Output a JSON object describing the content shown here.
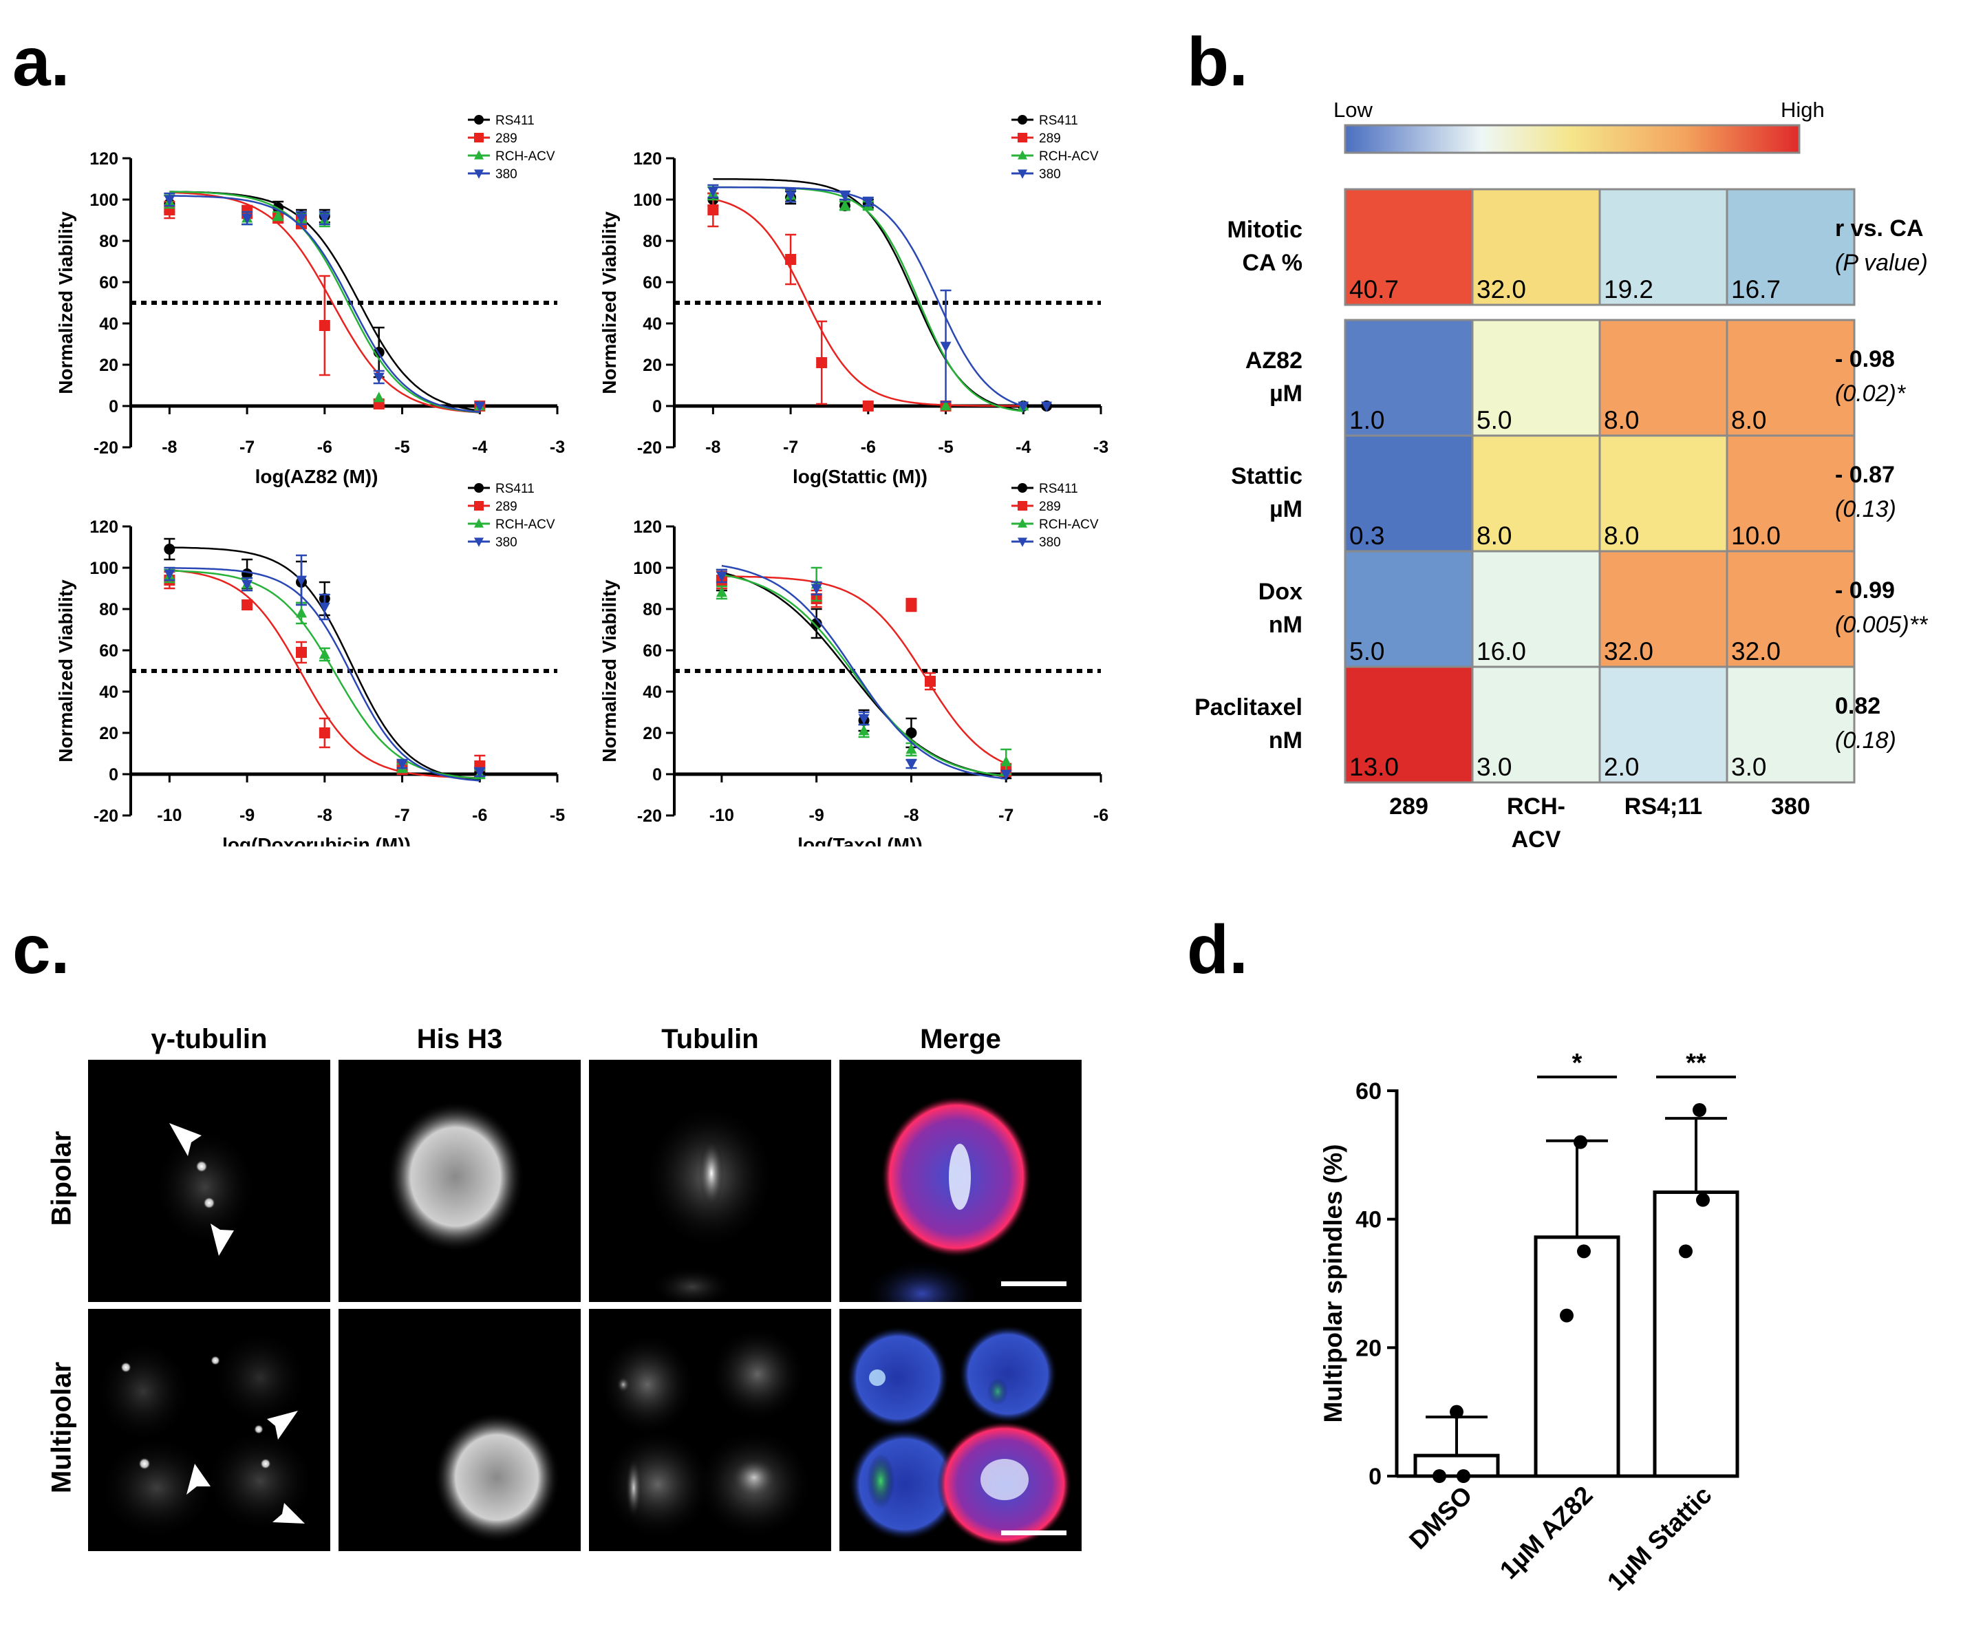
{
  "panel_labels": {
    "a": "a.",
    "b": "b.",
    "c": "c.",
    "d": "d."
  },
  "colors": {
    "RS411": "#000000",
    "289": "#e8231f",
    "RCH-ACV": "#27b33a",
    "380": "#2a48b5"
  },
  "chart_data": [
    {
      "type": "line",
      "panel": "a",
      "xlabel": "log(AZ82 (M))",
      "ylabel": "Normalized Viability",
      "xlim": [
        -8.5,
        -3
      ],
      "ylim": [
        -20,
        120
      ],
      "xticks": [
        -8,
        -7,
        -6,
        -5,
        -4,
        -3
      ],
      "yticks": [
        -20,
        0,
        20,
        40,
        60,
        80,
        100,
        120
      ],
      "threshold": 50,
      "series": [
        {
          "name": "RS411",
          "color": "#000000",
          "x": [
            -8,
            -6.6,
            -6.3,
            -6,
            -5.3,
            -4
          ],
          "y": [
            98,
            96,
            92,
            92,
            26,
            0
          ],
          "err": [
            4,
            3,
            3,
            3,
            12,
            1
          ],
          "ic50": -5.55,
          "hill": 1.15,
          "top": 104,
          "bottom": -4
        },
        {
          "name": "289",
          "color": "#e8231f",
          "x": [
            -8,
            -7,
            -6.6,
            -6.3,
            -6,
            -5.3,
            -4
          ],
          "y": [
            95,
            94,
            91,
            89,
            39,
            1,
            0
          ],
          "err": [
            4,
            3,
            2,
            3,
            24,
            1,
            1
          ],
          "ic50": -5.9,
          "hill": 1.1,
          "top": 104,
          "bottom": -4
        },
        {
          "name": "RCH-ACV",
          "color": "#27b33a",
          "x": [
            -8,
            -7,
            -6.6,
            -6.3,
            -6,
            -5.3,
            -4
          ],
          "y": [
            99,
            91,
            92,
            91,
            90,
            4,
            0
          ],
          "err": [
            3,
            3,
            2,
            2,
            3,
            1,
            1
          ],
          "ic50": -5.7,
          "hill": 1.2,
          "top": 104,
          "bottom": -4
        },
        {
          "name": "380",
          "color": "#2a48b5",
          "x": [
            -8,
            -7,
            -6.3,
            -6,
            -5.3,
            -4
          ],
          "y": [
            100,
            91,
            91,
            91,
            14,
            0
          ],
          "err": [
            3,
            3,
            3,
            3,
            3,
            1
          ],
          "ic50": -5.65,
          "hill": 1.2,
          "top": 102,
          "bottom": -4
        }
      ]
    },
    {
      "type": "line",
      "panel": "a",
      "xlabel": "log(Stattic (M))",
      "ylabel": "Normalized Viability",
      "xlim": [
        -8.5,
        -3
      ],
      "ylim": [
        -20,
        120
      ],
      "xticks": [
        -8,
        -7,
        -6,
        -5,
        -4,
        -3
      ],
      "yticks": [
        -20,
        0,
        20,
        40,
        60,
        80,
        100,
        120
      ],
      "threshold": 50,
      "series": [
        {
          "name": "RS411",
          "color": "#000000",
          "x": [
            -8,
            -7,
            -6.3,
            -6,
            -5,
            -4,
            -3.7
          ],
          "y": [
            100,
            101,
            97,
            98,
            0,
            0,
            0
          ],
          "err": [
            3,
            3,
            2,
            2,
            1,
            1,
            1
          ],
          "ic50": -5.4,
          "hill": 1.3,
          "top": 110,
          "bottom": -4
        },
        {
          "name": "289",
          "color": "#e8231f",
          "x": [
            -8,
            -7,
            -6.6,
            -6,
            -5
          ],
          "y": [
            95,
            71,
            21,
            0,
            0
          ],
          "err": [
            8,
            12,
            20,
            1,
            1
          ],
          "ic50": -6.8,
          "hill": 1.3,
          "top": 103,
          "bottom": 0
        },
        {
          "name": "RCH-ACV",
          "color": "#27b33a",
          "x": [
            -8,
            -7,
            -6.3,
            -6,
            -5,
            -4
          ],
          "y": [
            103,
            102,
            97,
            97,
            0,
            0
          ],
          "err": [
            3,
            3,
            2,
            2,
            1,
            1
          ],
          "ic50": -5.35,
          "hill": 1.4,
          "top": 106,
          "bottom": -4
        },
        {
          "name": "380",
          "color": "#2a48b5",
          "x": [
            -8,
            -7,
            -6.3,
            -6,
            -5,
            -4,
            -3.7
          ],
          "y": [
            104,
            102,
            102,
            99,
            29,
            0,
            0
          ],
          "err": [
            3,
            3,
            2,
            2,
            27,
            1,
            1
          ],
          "ic50": -5.1,
          "hill": 1.3,
          "top": 106,
          "bottom": -4
        }
      ]
    },
    {
      "type": "line",
      "panel": "a",
      "xlabel": "log(Doxorubicin (M))",
      "ylabel": "Normalized Viability",
      "xlim": [
        -10.5,
        -5
      ],
      "ylim": [
        -20,
        120
      ],
      "xticks": [
        -10,
        -9,
        -8,
        -7,
        -6,
        -5
      ],
      "yticks": [
        -20,
        0,
        20,
        40,
        60,
        80,
        100,
        120
      ],
      "threshold": 50,
      "series": [
        {
          "name": "RS411",
          "color": "#000000",
          "x": [
            -10,
            -9,
            -8.3,
            -8,
            -7,
            -6
          ],
          "y": [
            109,
            97,
            93,
            85,
            4,
            1
          ],
          "err": [
            5,
            7,
            10,
            8,
            2,
            2
          ],
          "ic50": -7.65,
          "hill": 1.2,
          "top": 110,
          "bottom": -4
        },
        {
          "name": "289",
          "color": "#e8231f",
          "x": [
            -10,
            -9,
            -8.3,
            -8,
            -7,
            -6
          ],
          "y": [
            94,
            82,
            59,
            20,
            3,
            4
          ],
          "err": [
            4,
            2,
            5,
            7,
            3,
            5
          ],
          "ic50": -8.3,
          "hill": 1.15,
          "top": 100,
          "bottom": -2
        },
        {
          "name": "RCH-ACV",
          "color": "#27b33a",
          "x": [
            -10,
            -9,
            -8.3,
            -8,
            -7,
            -6
          ],
          "y": [
            96,
            92,
            78,
            58,
            3,
            0
          ],
          "err": [
            3,
            3,
            5,
            3,
            2,
            2
          ],
          "ic50": -7.85,
          "hill": 1.1,
          "top": 99,
          "bottom": -3
        },
        {
          "name": "380",
          "color": "#2a48b5",
          "x": [
            -10,
            -9,
            -8.3,
            -8,
            -7,
            -6
          ],
          "y": [
            97,
            92,
            94,
            81,
            5,
            1
          ],
          "err": [
            3,
            3,
            12,
            6,
            2,
            2
          ],
          "ic50": -7.65,
          "hill": 1.25,
          "top": 100,
          "bottom": -4
        }
      ]
    },
    {
      "type": "line",
      "panel": "a",
      "xlabel": "log(Taxol (M))",
      "ylabel": "Normalized Viability",
      "xlim": [
        -10.5,
        -6
      ],
      "ylim": [
        -20,
        120
      ],
      "xticks": [
        -10,
        -9,
        -8,
        -7,
        -6
      ],
      "yticks": [
        -20,
        0,
        20,
        40,
        60,
        80,
        100,
        120
      ],
      "threshold": 50,
      "series": [
        {
          "name": "RS411",
          "color": "#000000",
          "x": [
            -10,
            -9,
            -8.5,
            -8,
            -7
          ],
          "y": [
            94,
            73,
            26,
            20,
            0
          ],
          "err": [
            5,
            7,
            5,
            7,
            2
          ],
          "ic50": -8.65,
          "hill": 0.95,
          "top": 103,
          "bottom": -4
        },
        {
          "name": "289",
          "color": "#e8231f",
          "x": [
            -10,
            -9,
            -8,
            -7.8,
            -7
          ],
          "y": [
            94,
            85,
            82,
            45,
            2
          ],
          "err": [
            4,
            4,
            3,
            4,
            3
          ],
          "ic50": -7.85,
          "hill": 1.3,
          "top": 96,
          "bottom": -2
        },
        {
          "name": "RCH-ACV",
          "color": "#27b33a",
          "x": [
            -10,
            -9,
            -8.5,
            -8,
            -7
          ],
          "y": [
            88,
            92,
            21,
            12,
            6
          ],
          "err": [
            3,
            8,
            3,
            3,
            6
          ],
          "ic50": -8.6,
          "hill": 1.05,
          "top": 100,
          "bottom": -3
        },
        {
          "name": "380",
          "color": "#2a48b5",
          "x": [
            -10,
            -9,
            -8.5,
            -8,
            -7
          ],
          "y": [
            96,
            90,
            27,
            5,
            0
          ],
          "err": [
            3,
            3,
            3,
            2,
            1
          ],
          "ic50": -8.6,
          "hill": 1.1,
          "top": 104,
          "bottom": -4
        }
      ]
    },
    {
      "type": "heatmap",
      "panel": "b",
      "scale_low": "Low",
      "scale_high": "High",
      "columns": [
        "289",
        "RCH-\nACV",
        "RS4;11",
        "380"
      ],
      "rows": [
        {
          "label": [
            "Mitotic",
            "CA %"
          ],
          "values": [
            "40.7",
            "32.0",
            "19.2",
            "16.7"
          ],
          "colors": [
            "#eb4f37",
            "#f6dc7d",
            "#c8e2ea",
            "#a4cadf"
          ],
          "stat": [
            "r vs. CA",
            "(P value)"
          ],
          "stat_style": "title"
        },
        {
          "label": [
            "AZ82",
            "µM"
          ],
          "values": [
            "1.0",
            "5.0",
            "8.0",
            "8.0"
          ],
          "colors": [
            "#5a7fc4",
            "#f1f6cc",
            "#f4a162",
            "#f4a162"
          ],
          "stat": [
            "- 0.98",
            "(0.02)*"
          ],
          "stat_style": "value"
        },
        {
          "label": [
            "Stattic",
            "µM"
          ],
          "values": [
            "0.3",
            "8.0",
            "8.0",
            "10.0"
          ],
          "colors": [
            "#4f74c0",
            "#f6e486",
            "#f6e486",
            "#f4a162"
          ],
          "stat": [
            "- 0.87",
            "(0.13)"
          ],
          "stat_style": "value"
        },
        {
          "label": [
            "Dox",
            "nM"
          ],
          "values": [
            "5.0",
            "16.0",
            "32.0",
            "32.0"
          ],
          "colors": [
            "#6b93cc",
            "#e6f4e9",
            "#f4a162",
            "#f4a162"
          ],
          "stat": [
            "- 0.99",
            "(0.005)**"
          ],
          "stat_style": "value"
        },
        {
          "label": [
            "Paclitaxel",
            "nM"
          ],
          "values": [
            "13.0",
            "3.0",
            "2.0",
            "3.0"
          ],
          "colors": [
            "#dc2b28",
            "#e6f4e9",
            "#cfe6ee",
            "#e6f4e9"
          ],
          "stat": [
            "0.82",
            "(0.18)"
          ],
          "stat_style": "value"
        }
      ]
    },
    {
      "type": "bar",
      "panel": "d",
      "categories": [
        "DMSO",
        "1µM AZ82",
        "1µM Stattic"
      ],
      "values": [
        3.2,
        37.2,
        44.2
      ],
      "err": [
        6,
        15,
        11.5
      ],
      "points": [
        [
          10,
          0,
          0
        ],
        [
          52,
          35,
          25
        ],
        [
          57,
          43,
          35
        ]
      ],
      "ylabel": "Multipolar spindles (%)",
      "ylim": [
        0,
        60
      ],
      "yticks": [
        0,
        20,
        40,
        60
      ],
      "significance": [
        "",
        "*",
        "**"
      ]
    }
  ],
  "panel_c": {
    "columns": [
      "γ-tubulin",
      "His H3",
      "Tubulin",
      "Merge"
    ],
    "rows": [
      "Bipolar",
      "Multipolar"
    ]
  }
}
